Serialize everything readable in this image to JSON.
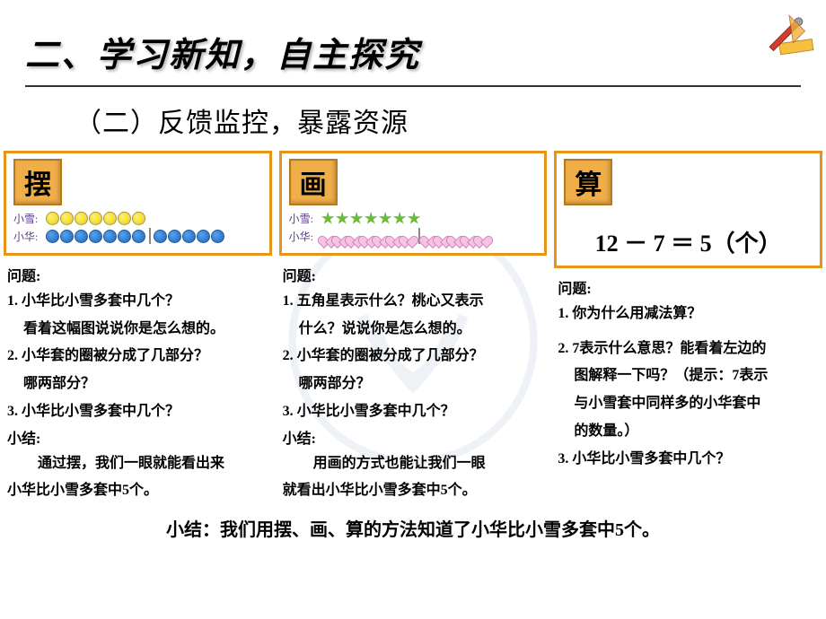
{
  "title": "二、学习新知，自主探究",
  "subtitle": "（二）反馈监控，暴露资源",
  "columns": [
    {
      "badge": "摆",
      "rows": [
        {
          "label": "小雪:",
          "type": "dots",
          "color": "y",
          "count": 7
        },
        {
          "label": "小华:",
          "type": "dots",
          "color": "b",
          "count_a": 7,
          "count_b": 5
        }
      ],
      "q_header": "问题:",
      "questions": [
        "1. 小华比小雪多套中几个？",
        "看着这幅图说说你是怎么想的。",
        "2. 小华套的圈被分成了几部分？",
        "哪两部分？",
        "3. 小华比小雪多套中几个？"
      ],
      "s_header": "小结:",
      "summary_lines": [
        "通过摆，我们一眼就能看出来",
        "小华比小雪多套中5个。"
      ]
    },
    {
      "badge": "画",
      "rows": [
        {
          "label": "小雪:",
          "type": "stars",
          "count": 7
        },
        {
          "label": "小华:",
          "type": "hearts",
          "count_a": 7,
          "count_b": 5
        }
      ],
      "q_header": "问题:",
      "questions": [
        "1. 五角星表示什么？桃心又表示",
        "什么？说说你是怎么想的。",
        "2. 小华套的圈被分成了几部分？",
        "哪两部分？",
        "3. 小华比小雪多套中几个？"
      ],
      "s_header": "小结:",
      "summary_lines": [
        "用画的方式也能让我们一眼",
        "就看出小华比小雪多套中5个。"
      ]
    },
    {
      "badge": "算",
      "equation": "12 － 7 ＝ 5（个）",
      "q_header": "问题:",
      "questions": [
        "1. 你为什么用减法算？",
        "",
        "2. 7表示什么意思？能看着左边的",
        "图解释一下吗？（提示：7表示",
        "与小雪套中同样多的小华套中",
        "的数量。）",
        "3. 小华比小雪多套中几个？"
      ]
    }
  ],
  "bottom_summary": "小结：我们用摆、画、算的方法知道了小华比小雪多套中5个。",
  "colors": {
    "border": "#e8941a",
    "badge_bg": "#f0ae48",
    "badge_border": "#b87820"
  }
}
